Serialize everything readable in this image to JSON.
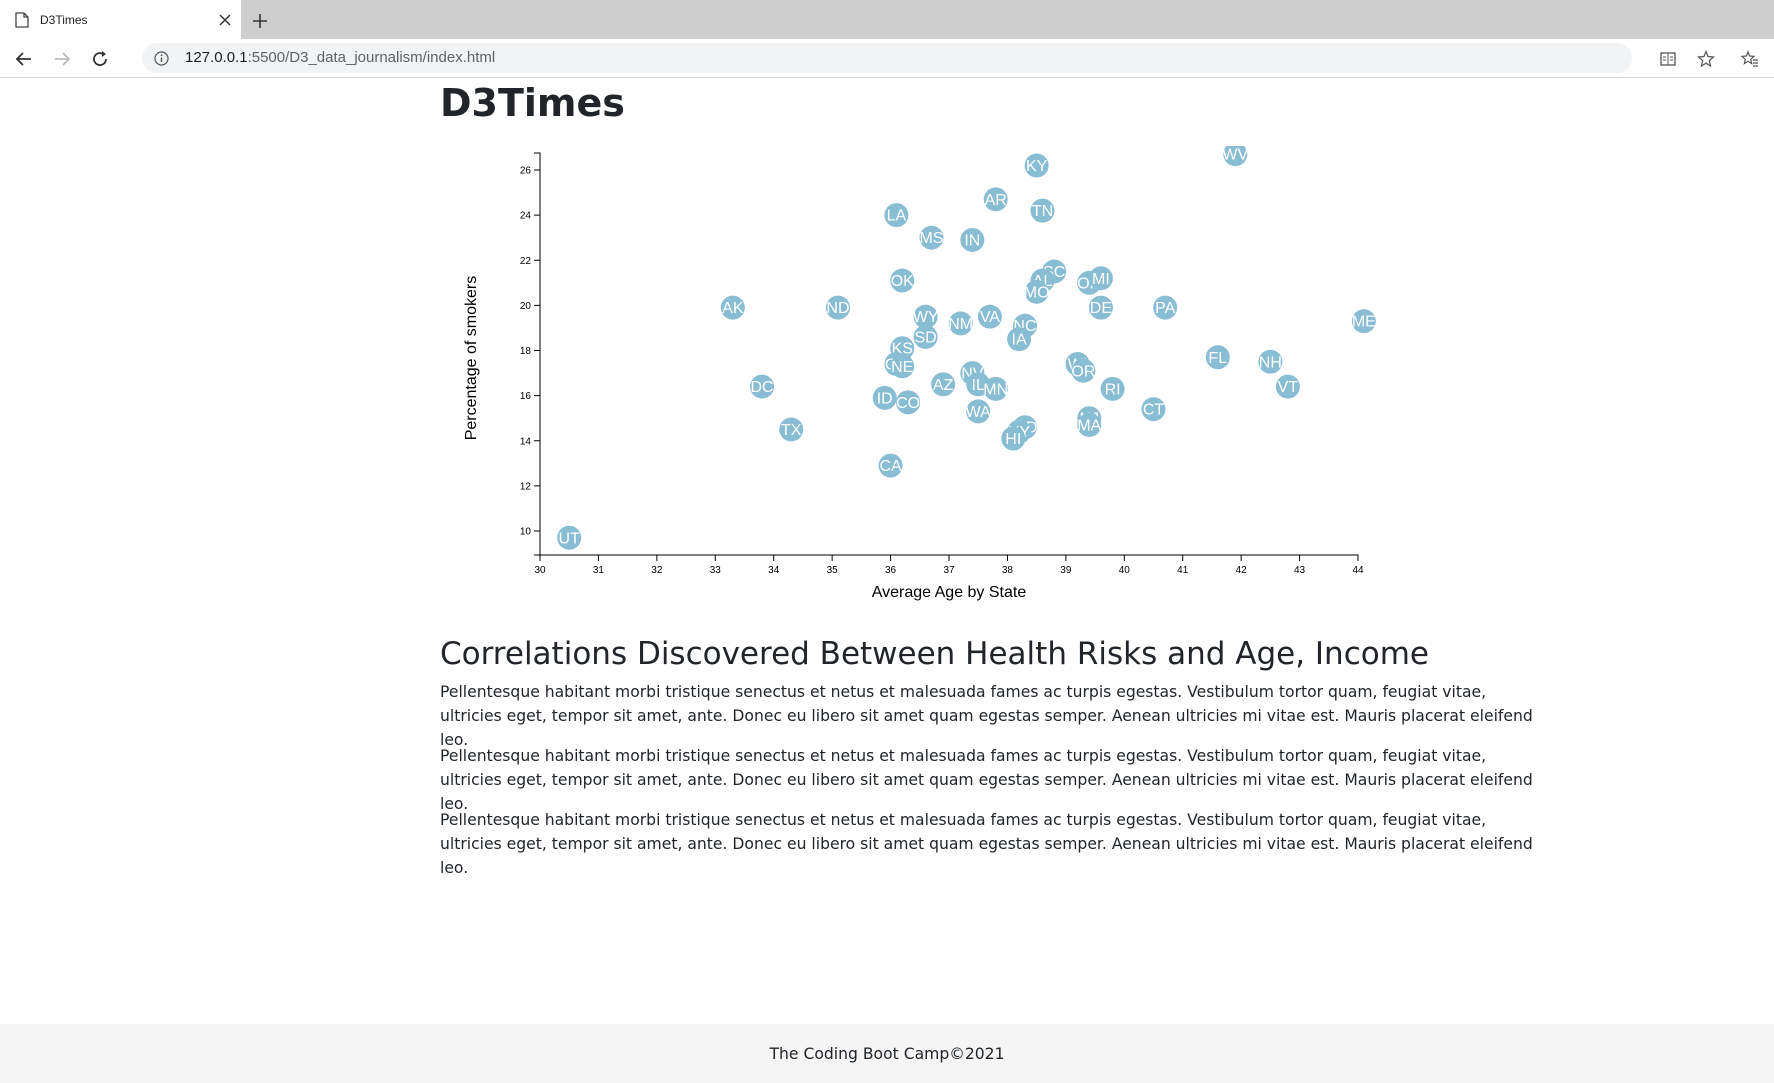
{
  "browser": {
    "tab_title": "D3Times",
    "url_host": "127.0.0.1",
    "url_path": ":5500/D3_data_journalism/index.html"
  },
  "page": {
    "title": "D3Times",
    "article_heading": "Correlations Discovered Between Health Risks and Age, Income",
    "paragraphs": [
      "Pellentesque habitant morbi tristique senectus et netus et malesuada fames ac turpis egestas. Vestibulum tortor quam, feugiat vitae, ultricies eget, tempor sit amet, ante. Donec eu libero sit amet quam egestas semper. Aenean ultricies mi vitae est. Mauris placerat eleifend leo.",
      "Pellentesque habitant morbi tristique senectus et netus et malesuada fames ac turpis egestas. Vestibulum tortor quam, feugiat vitae, ultricies eget, tempor sit amet, ante. Donec eu libero sit amet quam egestas semper. Aenean ultricies mi vitae est. Mauris placerat eleifend leo.",
      "Pellentesque habitant morbi tristique senectus et netus et malesuada fames ac turpis egestas. Vestibulum tortor quam, feugiat vitae, ultricies eget, tempor sit amet, ante. Donec eu libero sit amet quam egestas semper. Aenean ultricies mi vitae est. Mauris placerat eleifend leo."
    ],
    "footer": "The Coding Boot Camp©2021"
  },
  "colors": {
    "circle_fill": "#89bdd3",
    "label_fill": "#ffffff",
    "footer_bg": "#f5f5f5"
  },
  "chart_data": {
    "type": "scatter",
    "title": "",
    "xlabel": "Average Age by State",
    "ylabel": "Percentage of smokers",
    "xlim": [
      30,
      44
    ],
    "ylim": [
      9,
      26.7
    ],
    "x_ticks": [
      30,
      31,
      32,
      33,
      34,
      35,
      36,
      37,
      38,
      39,
      40,
      41,
      42,
      43,
      44
    ],
    "y_ticks": [
      10,
      12,
      14,
      16,
      18,
      20,
      22,
      24,
      26
    ],
    "grid": false,
    "points": [
      {
        "abbr": "WV",
        "x": 41.9,
        "y": 26.7
      },
      {
        "abbr": "KY",
        "x": 38.5,
        "y": 26.2
      },
      {
        "abbr": "AR",
        "x": 37.8,
        "y": 24.7
      },
      {
        "abbr": "TN",
        "x": 38.6,
        "y": 24.2
      },
      {
        "abbr": "LA",
        "x": 36.1,
        "y": 24.0
      },
      {
        "abbr": "MS",
        "x": 36.7,
        "y": 23.0
      },
      {
        "abbr": "IN",
        "x": 37.4,
        "y": 22.9
      },
      {
        "abbr": "SC",
        "x": 38.8,
        "y": 21.5
      },
      {
        "abbr": "AL",
        "x": 38.6,
        "y": 21.1
      },
      {
        "abbr": "OH",
        "x": 39.4,
        "y": 21.0
      },
      {
        "abbr": "MI",
        "x": 39.6,
        "y": 21.2
      },
      {
        "abbr": "MO",
        "x": 38.5,
        "y": 20.6
      },
      {
        "abbr": "OK",
        "x": 36.2,
        "y": 21.1
      },
      {
        "abbr": "AK",
        "x": 33.3,
        "y": 19.9
      },
      {
        "abbr": "ND",
        "x": 35.1,
        "y": 19.9
      },
      {
        "abbr": "DE",
        "x": 39.6,
        "y": 19.9
      },
      {
        "abbr": "PA",
        "x": 40.7,
        "y": 19.9
      },
      {
        "abbr": "ME",
        "x": 44.1,
        "y": 19.3
      },
      {
        "abbr": "WY",
        "x": 36.6,
        "y": 19.5
      },
      {
        "abbr": "VA",
        "x": 37.7,
        "y": 19.5
      },
      {
        "abbr": "NM",
        "x": 37.2,
        "y": 19.2
      },
      {
        "abbr": "NC",
        "x": 38.3,
        "y": 19.1
      },
      {
        "abbr": "SD",
        "x": 36.6,
        "y": 18.6
      },
      {
        "abbr": "IA",
        "x": 38.2,
        "y": 18.5
      },
      {
        "abbr": "KS",
        "x": 36.2,
        "y": 18.1
      },
      {
        "abbr": "GA",
        "x": 36.1,
        "y": 17.4
      },
      {
        "abbr": "NE",
        "x": 36.2,
        "y": 17.3
      },
      {
        "abbr": "FL",
        "x": 41.6,
        "y": 17.7
      },
      {
        "abbr": "NH",
        "x": 42.5,
        "y": 17.5
      },
      {
        "abbr": "WI",
        "x": 39.2,
        "y": 17.4
      },
      {
        "abbr": "OR",
        "x": 39.3,
        "y": 17.1
      },
      {
        "abbr": "NV",
        "x": 37.4,
        "y": 17.0
      },
      {
        "abbr": "IL",
        "x": 37.5,
        "y": 16.5
      },
      {
        "abbr": "AZ",
        "x": 36.9,
        "y": 16.5
      },
      {
        "abbr": "MN",
        "x": 37.8,
        "y": 16.3
      },
      {
        "abbr": "DC",
        "x": 33.8,
        "y": 16.4
      },
      {
        "abbr": "RI",
        "x": 39.8,
        "y": 16.3
      },
      {
        "abbr": "VT",
        "x": 42.8,
        "y": 16.4
      },
      {
        "abbr": "ID",
        "x": 35.9,
        "y": 15.9
      },
      {
        "abbr": "CO",
        "x": 36.3,
        "y": 15.7
      },
      {
        "abbr": "CT",
        "x": 40.5,
        "y": 15.4
      },
      {
        "abbr": "WA",
        "x": 37.5,
        "y": 15.3
      },
      {
        "abbr": "NJ",
        "x": 39.4,
        "y": 15.0
      },
      {
        "abbr": "MA",
        "x": 39.4,
        "y": 14.7
      },
      {
        "abbr": "MD",
        "x": 38.3,
        "y": 14.6
      },
      {
        "abbr": "NY",
        "x": 38.2,
        "y": 14.4
      },
      {
        "abbr": "HI",
        "x": 38.1,
        "y": 14.1
      },
      {
        "abbr": "TX",
        "x": 34.3,
        "y": 14.5
      },
      {
        "abbr": "CA",
        "x": 36.0,
        "y": 12.9
      },
      {
        "abbr": "UT",
        "x": 30.5,
        "y": 9.7
      }
    ]
  }
}
